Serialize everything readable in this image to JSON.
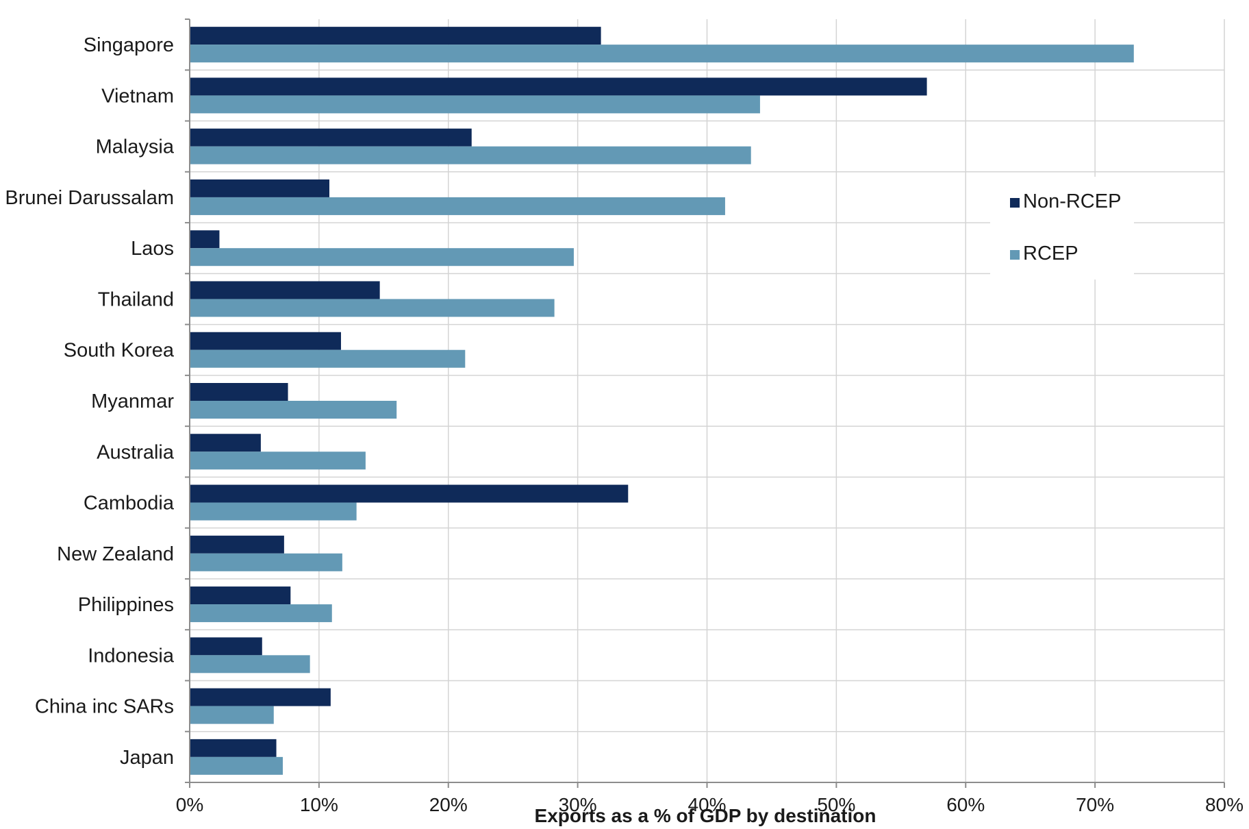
{
  "chart_data": {
    "type": "bar",
    "orientation": "horizontal",
    "title": "",
    "xlabel": "Exports as a % of GDP by destination",
    "ylabel": "",
    "xlim": [
      0,
      80
    ],
    "x_ticks": [
      "0%",
      "10%",
      "20%",
      "30%",
      "40%",
      "50%",
      "60%",
      "70%",
      "80%"
    ],
    "grid": true,
    "legend_position": "right",
    "categories": [
      "Singapore",
      "Vietnam",
      "Malaysia",
      "Brunei Darussalam",
      "Laos",
      "Thailand",
      "South Korea",
      "Myanmar",
      "Australia",
      "Cambodia",
      "New Zealand",
      "Philippines",
      "Indonesia",
      "China inc SARs",
      "Japan"
    ],
    "series": [
      {
        "name": "Non-RCEP",
        "color": "#0f2a59",
        "values": [
          31.8,
          57.0,
          21.8,
          10.8,
          2.3,
          14.7,
          11.7,
          7.6,
          5.5,
          33.9,
          7.3,
          7.8,
          5.6,
          10.9,
          6.7
        ]
      },
      {
        "name": "RCEP",
        "color": "#6399b5",
        "values": [
          73.0,
          44.1,
          43.4,
          41.4,
          29.7,
          28.2,
          21.3,
          16.0,
          13.6,
          12.9,
          11.8,
          11.0,
          9.3,
          6.5,
          7.2
        ]
      }
    ]
  }
}
